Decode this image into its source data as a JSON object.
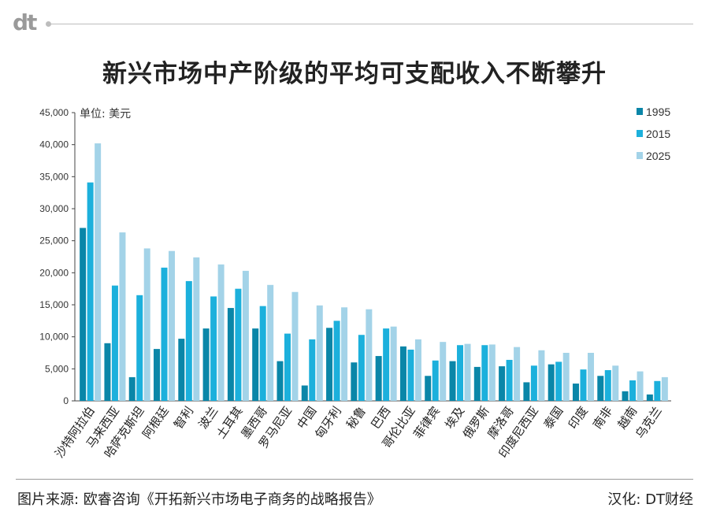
{
  "header": {
    "logo_text": "dt"
  },
  "title": "新兴市场中产阶级的平均可支配收入不断攀升",
  "footer": {
    "source": "图片来源: 欧睿咨询《开拓新兴市场电子商务的战略报告》",
    "credit": "汉化: DT财经"
  },
  "chart_data": {
    "type": "bar",
    "unit_label": "单位: 美元",
    "categories": [
      "沙特阿拉伯",
      "马来西亚",
      "哈萨克斯坦",
      "阿根廷",
      "智利",
      "波兰",
      "土耳其",
      "墨西哥",
      "罗马尼亚",
      "中国",
      "匈牙利",
      "秘鲁",
      "巴西",
      "哥伦比亚",
      "菲律宾",
      "埃及",
      "俄罗斯",
      "摩洛哥",
      "印度尼西亚",
      "泰国",
      "印度",
      "南非",
      "越南",
      "乌克兰"
    ],
    "series": [
      {
        "name": "1995",
        "color": "#0a86a8",
        "values": [
          27000,
          9000,
          3700,
          8100,
          9700,
          11300,
          14500,
          11300,
          6200,
          2400,
          11400,
          6000,
          7000,
          8500,
          3900,
          6200,
          5300,
          5400,
          2900,
          5700,
          2700,
          3900,
          1500,
          1000
        ]
      },
      {
        "name": "2015",
        "color": "#1cb0dc",
        "values": [
          34100,
          18000,
          16500,
          20800,
          18700,
          16300,
          17500,
          14800,
          10500,
          9600,
          12500,
          10300,
          11300,
          8000,
          6300,
          8700,
          8700,
          6400,
          5500,
          6100,
          4900,
          4800,
          3200,
          3100
        ]
      },
      {
        "name": "2025",
        "color": "#a3d3e8",
        "values": [
          40200,
          26300,
          23800,
          23400,
          22400,
          21300,
          20300,
          18100,
          17000,
          14900,
          14600,
          14300,
          11600,
          9600,
          9200,
          8900,
          8800,
          8400,
          7900,
          7500,
          7500,
          5500,
          4600,
          3700
        ]
      }
    ],
    "ylim": [
      0,
      45000
    ],
    "yticks": [
      "0",
      "5,000",
      "10,000",
      "15,000",
      "20,000",
      "25,000",
      "30,000",
      "35,000",
      "40,000",
      "45,000"
    ],
    "legend_position": "right"
  }
}
